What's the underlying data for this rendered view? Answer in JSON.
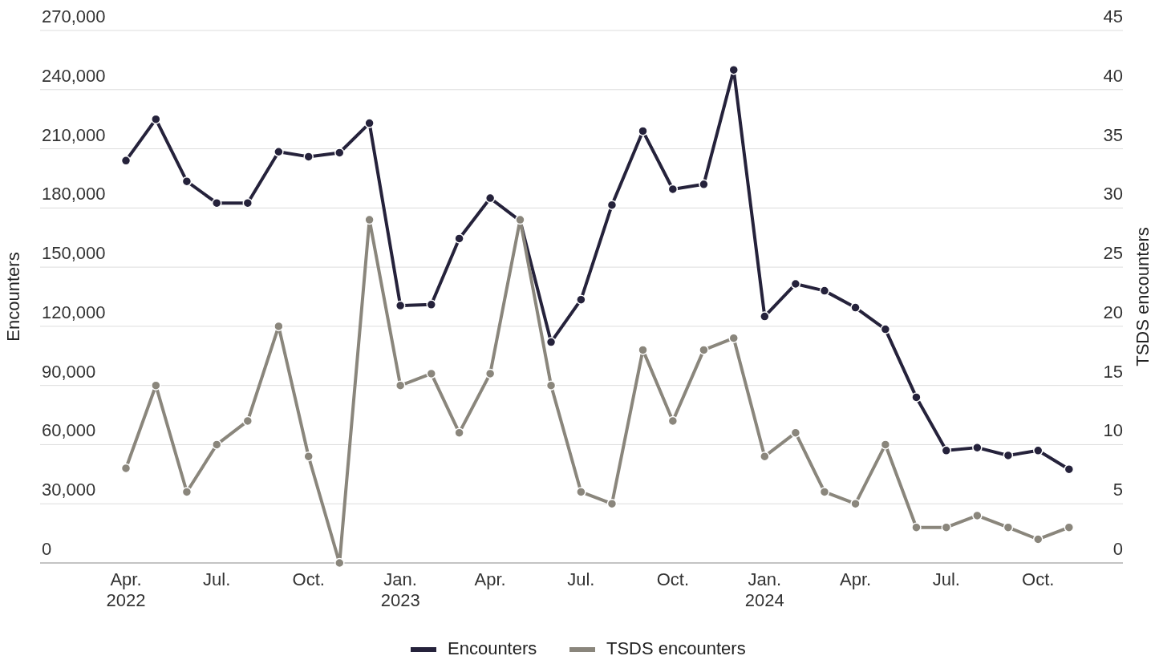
{
  "chart_data": {
    "type": "line",
    "ylabel": "Encounters",
    "y2label": "TSDS encounters",
    "x": [
      "2022-04",
      "2022-05",
      "2022-06",
      "2022-07",
      "2022-08",
      "2022-09",
      "2022-10",
      "2022-11",
      "2022-12",
      "2023-01",
      "2023-02",
      "2023-03",
      "2023-04",
      "2023-05",
      "2023-06",
      "2023-07",
      "2023-08",
      "2023-09",
      "2023-10",
      "2023-11",
      "2023-12",
      "2024-01",
      "2024-02",
      "2024-03",
      "2024-04",
      "2024-05",
      "2024-06",
      "2024-07",
      "2024-08",
      "2024-09",
      "2024-10",
      "2024-11"
    ],
    "series": [
      {
        "name": "Encounters",
        "color": "#25223b",
        "values": [
          204000,
          225000,
          193500,
          182500,
          182500,
          208500,
          206000,
          208000,
          223000,
          130500,
          131000,
          164500,
          185000,
          173500,
          112000,
          133500,
          181500,
          219000,
          189500,
          192000,
          250000,
          125000,
          141500,
          138000,
          129500,
          118500,
          84000,
          57000,
          58500,
          54500,
          57000,
          47500
        ]
      },
      {
        "name": "TSDS encounters",
        "color": "#8a867c",
        "axis": "y2",
        "values": [
          8,
          15,
          6,
          10,
          12,
          20,
          9,
          0,
          29,
          15,
          16,
          11,
          16,
          29,
          15,
          6,
          5,
          18,
          12,
          18,
          19,
          9,
          11,
          6,
          5,
          10,
          3,
          3,
          4,
          3,
          2,
          3
        ]
      }
    ],
    "xlim": [
      "2022-01-05",
      "2024-12-25"
    ],
    "xticks": [
      {
        "value": "2022-04",
        "label": "Apr.\n2022"
      },
      {
        "value": "2022-07",
        "label": "Jul."
      },
      {
        "value": "2022-10",
        "label": "Oct."
      },
      {
        "value": "2023-01",
        "label": "Jan.\n2023"
      },
      {
        "value": "2023-04",
        "label": "Apr."
      },
      {
        "value": "2023-07",
        "label": "Jul."
      },
      {
        "value": "2023-10",
        "label": "Oct."
      },
      {
        "value": "2024-01",
        "label": "Jan.\n2024"
      },
      {
        "value": "2024-04",
        "label": "Apr."
      },
      {
        "value": "2024-07",
        "label": "Jul."
      },
      {
        "value": "2024-10",
        "label": "Oct."
      }
    ],
    "ylim": [
      0,
      270000
    ],
    "yticks": [
      {
        "value": 0,
        "label": "0"
      },
      {
        "value": 30000,
        "label": "30,000"
      },
      {
        "value": 60000,
        "label": "60,000"
      },
      {
        "value": 90000,
        "label": "90,000"
      },
      {
        "value": 120000,
        "label": "120,000"
      },
      {
        "value": 150000,
        "label": "150,000"
      },
      {
        "value": 180000,
        "label": "180,000"
      },
      {
        "value": 210000,
        "label": "210,000"
      },
      {
        "value": 240000,
        "label": "240,000"
      },
      {
        "value": 270000,
        "label": "270,000"
      }
    ],
    "y2lim": [
      0,
      45
    ],
    "y2ticks": [
      0,
      5,
      10,
      15,
      20,
      25,
      30,
      35,
      40,
      45
    ],
    "grid": "y",
    "legend": "bottom",
    "marker": "circle",
    "line_style": "solid"
  }
}
